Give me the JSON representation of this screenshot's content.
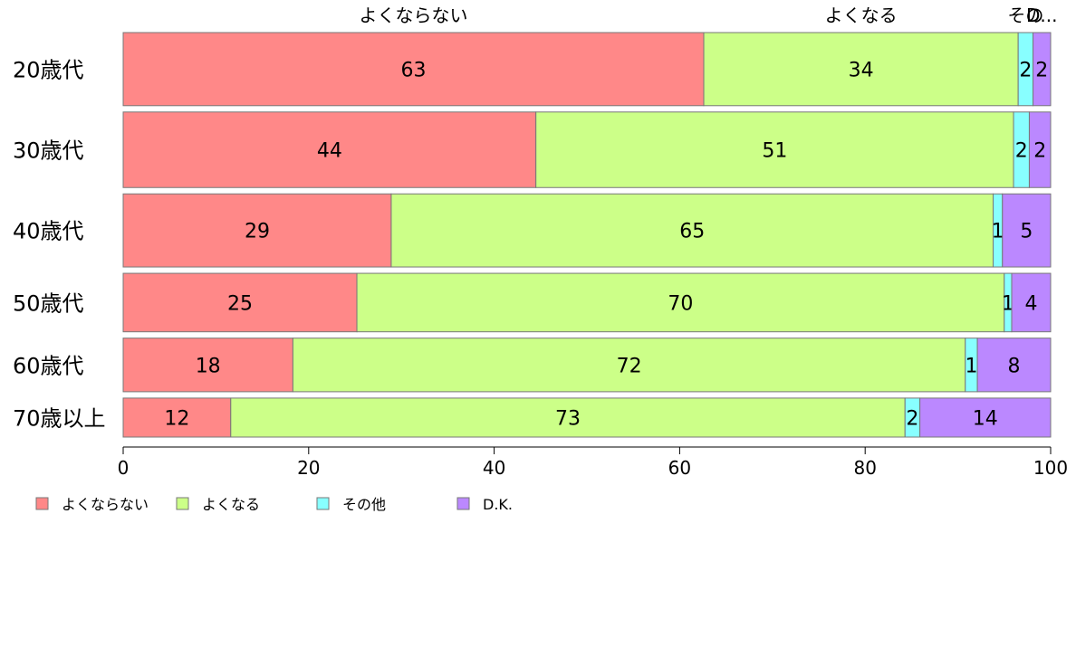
{
  "chart_data": {
    "type": "bar",
    "orientation": "horizontal",
    "stacked": true,
    "title": "",
    "xlabel": "",
    "ylabel": "",
    "xlim": [
      0,
      100
    ],
    "x_ticks": [
      0,
      20,
      40,
      60,
      80,
      100
    ],
    "grid": false,
    "legend_position": "bottom-left",
    "categories": [
      "20歳代",
      "30歳代",
      "40歳代",
      "50歳代",
      "60歳代",
      "70歳以上"
    ],
    "bar_weights": [
      0.3,
      0.31,
      0.3,
      0.24,
      0.22,
      0.16
    ],
    "top_labels": [
      "よくならない",
      "よくなる",
      "その",
      "D..."
    ],
    "series": [
      {
        "name": "よくならない",
        "color": "#ff8888",
        "values": [
          62.6,
          44.5,
          28.9,
          25.2,
          18.3,
          11.6
        ],
        "labels": [
          "63",
          "44",
          "29",
          "25",
          "18",
          "12"
        ]
      },
      {
        "name": "よくなる",
        "color": "#ccff88",
        "values": [
          33.9,
          51.5,
          64.9,
          69.8,
          72.5,
          72.7
        ],
        "labels": [
          "34",
          "51",
          "65",
          "70",
          "72",
          "73"
        ]
      },
      {
        "name": "その他",
        "color": "#88ffff",
        "values": [
          1.6,
          1.7,
          1.0,
          0.8,
          1.3,
          1.6
        ],
        "labels": [
          "2",
          "2",
          "1",
          "1",
          "1",
          "2"
        ]
      },
      {
        "name": "D.K.",
        "color": "#bb88ff",
        "values": [
          1.9,
          2.3,
          5.2,
          4.2,
          7.9,
          14.1
        ],
        "labels": [
          "2",
          "2",
          "5",
          "4",
          "8",
          "14"
        ]
      }
    ]
  }
}
